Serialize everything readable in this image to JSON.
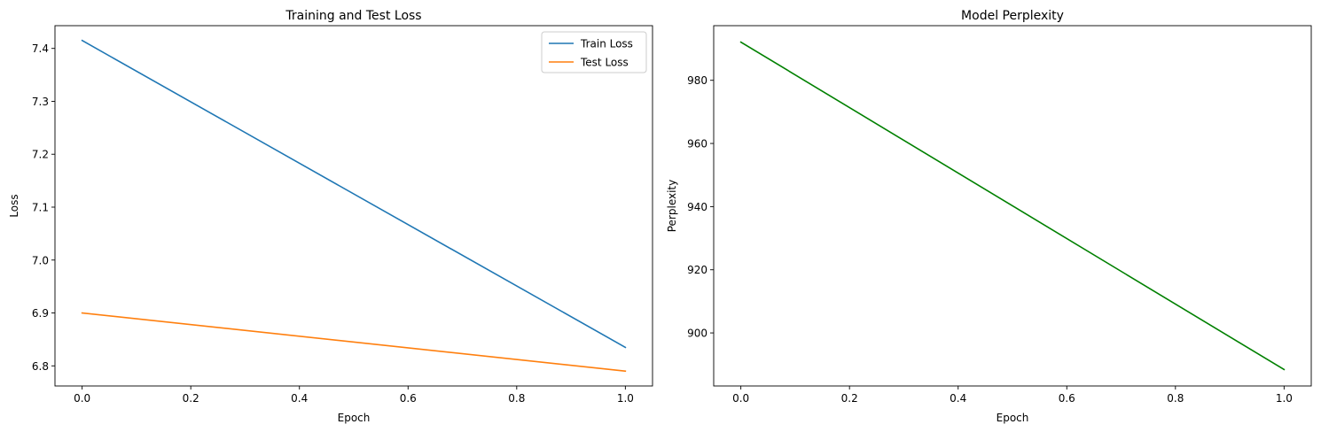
{
  "chart_data": [
    {
      "type": "line",
      "title": "Training and Test Loss",
      "xlabel": "Epoch",
      "ylabel": "Loss",
      "xlim": [
        -0.05,
        1.05
      ],
      "ylim": [
        6.762,
        7.443
      ],
      "xticks": [
        0.0,
        0.2,
        0.4,
        0.6,
        0.8,
        1.0
      ],
      "xtick_labels": [
        "0.0",
        "0.2",
        "0.4",
        "0.6",
        "0.8",
        "1.0"
      ],
      "yticks": [
        6.8,
        6.9,
        7.0,
        7.1,
        7.2,
        7.3,
        7.4
      ],
      "ytick_labels": [
        "6.8",
        "6.9",
        "7.0",
        "7.1",
        "7.2",
        "7.3",
        "7.4"
      ],
      "grid": false,
      "legend": "top-right",
      "series": [
        {
          "name": "Train Loss",
          "color": "#1f77b4",
          "x": [
            0,
            1
          ],
          "y": [
            7.415,
            6.835
          ]
        },
        {
          "name": "Test Loss",
          "color": "#ff7f0e",
          "x": [
            0,
            1
          ],
          "y": [
            6.9,
            6.79
          ]
        }
      ]
    },
    {
      "type": "line",
      "title": "Model Perplexity",
      "xlabel": "Epoch",
      "ylabel": "Perplexity",
      "xlim": [
        -0.05,
        1.05
      ],
      "ylim": [
        883.2,
        997.3
      ],
      "xticks": [
        0.0,
        0.2,
        0.4,
        0.6,
        0.8,
        1.0
      ],
      "xtick_labels": [
        "0.0",
        "0.2",
        "0.4",
        "0.6",
        "0.8",
        "1.0"
      ],
      "yticks": [
        900,
        920,
        940,
        960,
        980
      ],
      "ytick_labels": [
        "900",
        "920",
        "940",
        "960",
        "980"
      ],
      "grid": false,
      "series": [
        {
          "color": "#008000",
          "x": [
            0,
            1
          ],
          "y": [
            992.1,
            888.4
          ]
        }
      ]
    }
  ]
}
